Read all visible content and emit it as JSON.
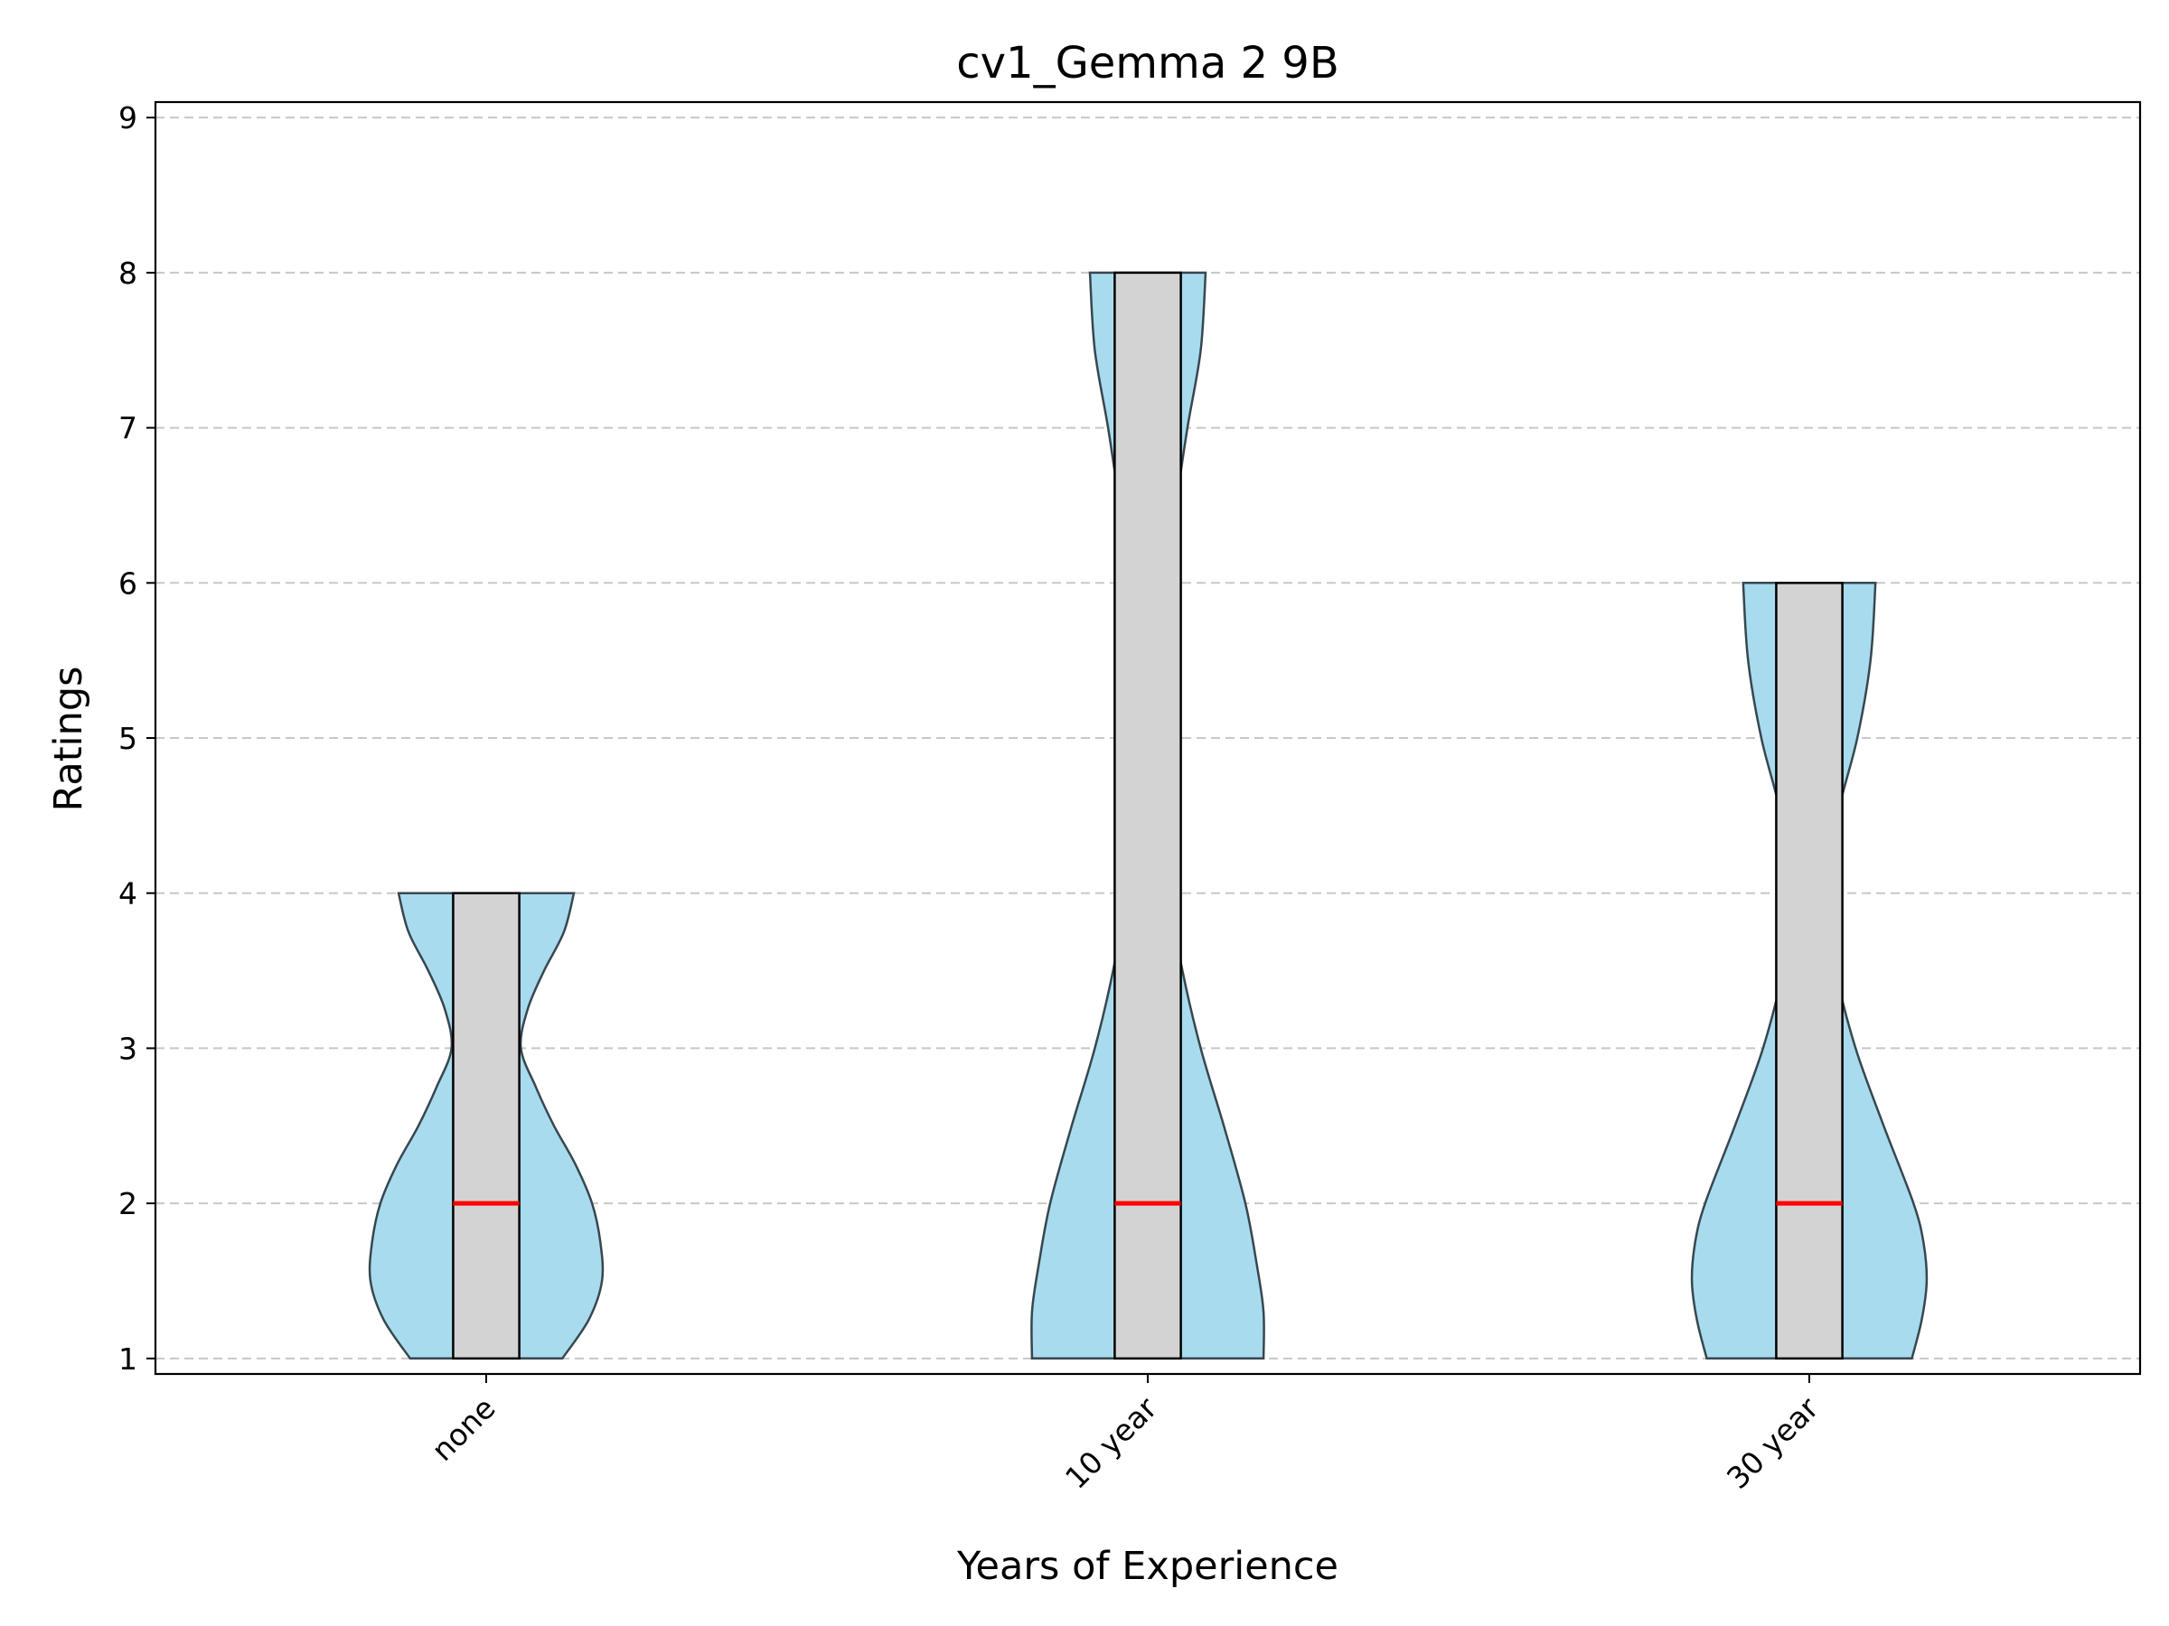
{
  "chart_data": {
    "type": "violin",
    "title": "cv1_Gemma 2 9B",
    "xlabel": "Years of Experience",
    "ylabel": "Ratings",
    "ylim": [
      0.9,
      9.1
    ],
    "yticks": [
      1,
      2,
      3,
      4,
      5,
      6,
      7,
      8,
      9
    ],
    "grid": "y-dashed",
    "colors": {
      "violin_fill": "#a8dbee",
      "violin_edge": "#37474f",
      "box_fill": "#d3d3d3",
      "box_edge": "#000000",
      "median": "#ff0000",
      "grid": "#c8c8c8"
    },
    "categories": [
      "none",
      "10 year",
      "30 year"
    ],
    "series": [
      {
        "category": "none",
        "min": 1,
        "q1": 1,
        "median": 2,
        "q3": 4,
        "max": 4,
        "density": [
          {
            "y": 1.0,
            "w": 0.46
          },
          {
            "y": 1.25,
            "w": 0.62
          },
          {
            "y": 1.5,
            "w": 0.7
          },
          {
            "y": 1.75,
            "w": 0.69
          },
          {
            "y": 2.0,
            "w": 0.64
          },
          {
            "y": 2.25,
            "w": 0.54
          },
          {
            "y": 2.5,
            "w": 0.41
          },
          {
            "y": 2.75,
            "w": 0.3
          },
          {
            "y": 3.0,
            "w": 0.21
          },
          {
            "y": 3.25,
            "w": 0.25
          },
          {
            "y": 3.5,
            "w": 0.35
          },
          {
            "y": 3.75,
            "w": 0.47
          },
          {
            "y": 4.0,
            "w": 0.53
          }
        ]
      },
      {
        "category": "10 year",
        "min": 1,
        "q1": 1,
        "median": 2,
        "q3": 8,
        "max": 8,
        "density": [
          {
            "y": 1.0,
            "w": 0.7
          },
          {
            "y": 1.3,
            "w": 0.7
          },
          {
            "y": 1.6,
            "w": 0.66
          },
          {
            "y": 2.0,
            "w": 0.59
          },
          {
            "y": 2.5,
            "w": 0.46
          },
          {
            "y": 3.0,
            "w": 0.32
          },
          {
            "y": 3.5,
            "w": 0.21
          },
          {
            "y": 4.0,
            "w": 0.13
          },
          {
            "y": 4.5,
            "w": 0.07
          },
          {
            "y": 5.0,
            "w": 0.035
          },
          {
            "y": 5.5,
            "w": 0.045
          },
          {
            "y": 6.0,
            "w": 0.1
          },
          {
            "y": 6.5,
            "w": 0.17
          },
          {
            "y": 7.0,
            "w": 0.24
          },
          {
            "y": 7.5,
            "w": 0.32
          },
          {
            "y": 8.0,
            "w": 0.35
          }
        ]
      },
      {
        "category": "30 year",
        "min": 1,
        "q1": 1,
        "median": 2,
        "q3": 6,
        "max": 6,
        "density": [
          {
            "y": 1.0,
            "w": 0.62
          },
          {
            "y": 1.25,
            "w": 0.68
          },
          {
            "y": 1.5,
            "w": 0.71
          },
          {
            "y": 1.75,
            "w": 0.69
          },
          {
            "y": 2.0,
            "w": 0.63
          },
          {
            "y": 2.5,
            "w": 0.45
          },
          {
            "y": 3.0,
            "w": 0.28
          },
          {
            "y": 3.5,
            "w": 0.16
          },
          {
            "y": 4.0,
            "w": 0.1
          },
          {
            "y": 4.5,
            "w": 0.17
          },
          {
            "y": 5.0,
            "w": 0.29
          },
          {
            "y": 5.5,
            "w": 0.37
          },
          {
            "y": 6.0,
            "w": 0.4
          }
        ]
      }
    ]
  }
}
